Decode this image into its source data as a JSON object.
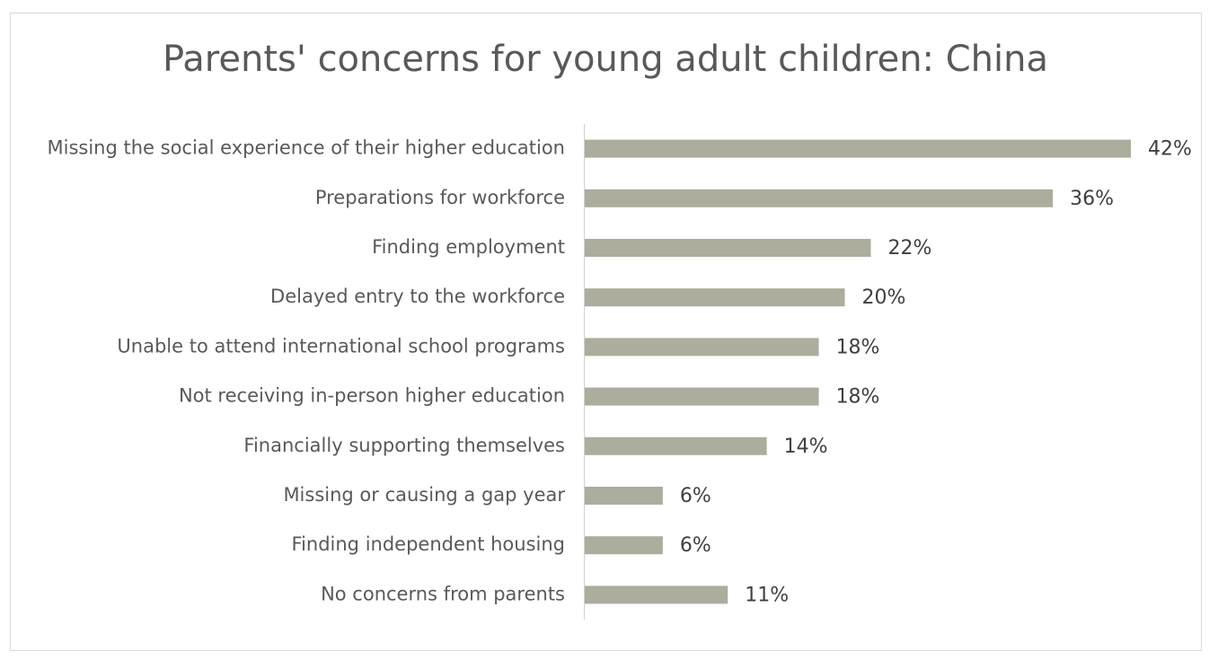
{
  "chart_data": {
    "type": "bar",
    "orientation": "horizontal",
    "title": "Parents' concerns for young adult children: China",
    "categories": [
      "Missing the social experience of their higher education",
      "Preparations for workforce",
      "Finding employment",
      "Delayed entry to the workforce",
      "Unable to attend international school programs",
      "Not receiving in-person higher education",
      "Financially supporting themselves",
      "Missing or causing a gap year",
      "Finding independent housing",
      "No concerns from parents"
    ],
    "values": [
      42,
      36,
      22,
      20,
      18,
      18,
      14,
      6,
      6,
      11
    ],
    "value_labels": [
      "42%",
      "36%",
      "22%",
      "20%",
      "18%",
      "18%",
      "14%",
      "6%",
      "6%",
      "11%"
    ],
    "color": "#adad9e"
  }
}
